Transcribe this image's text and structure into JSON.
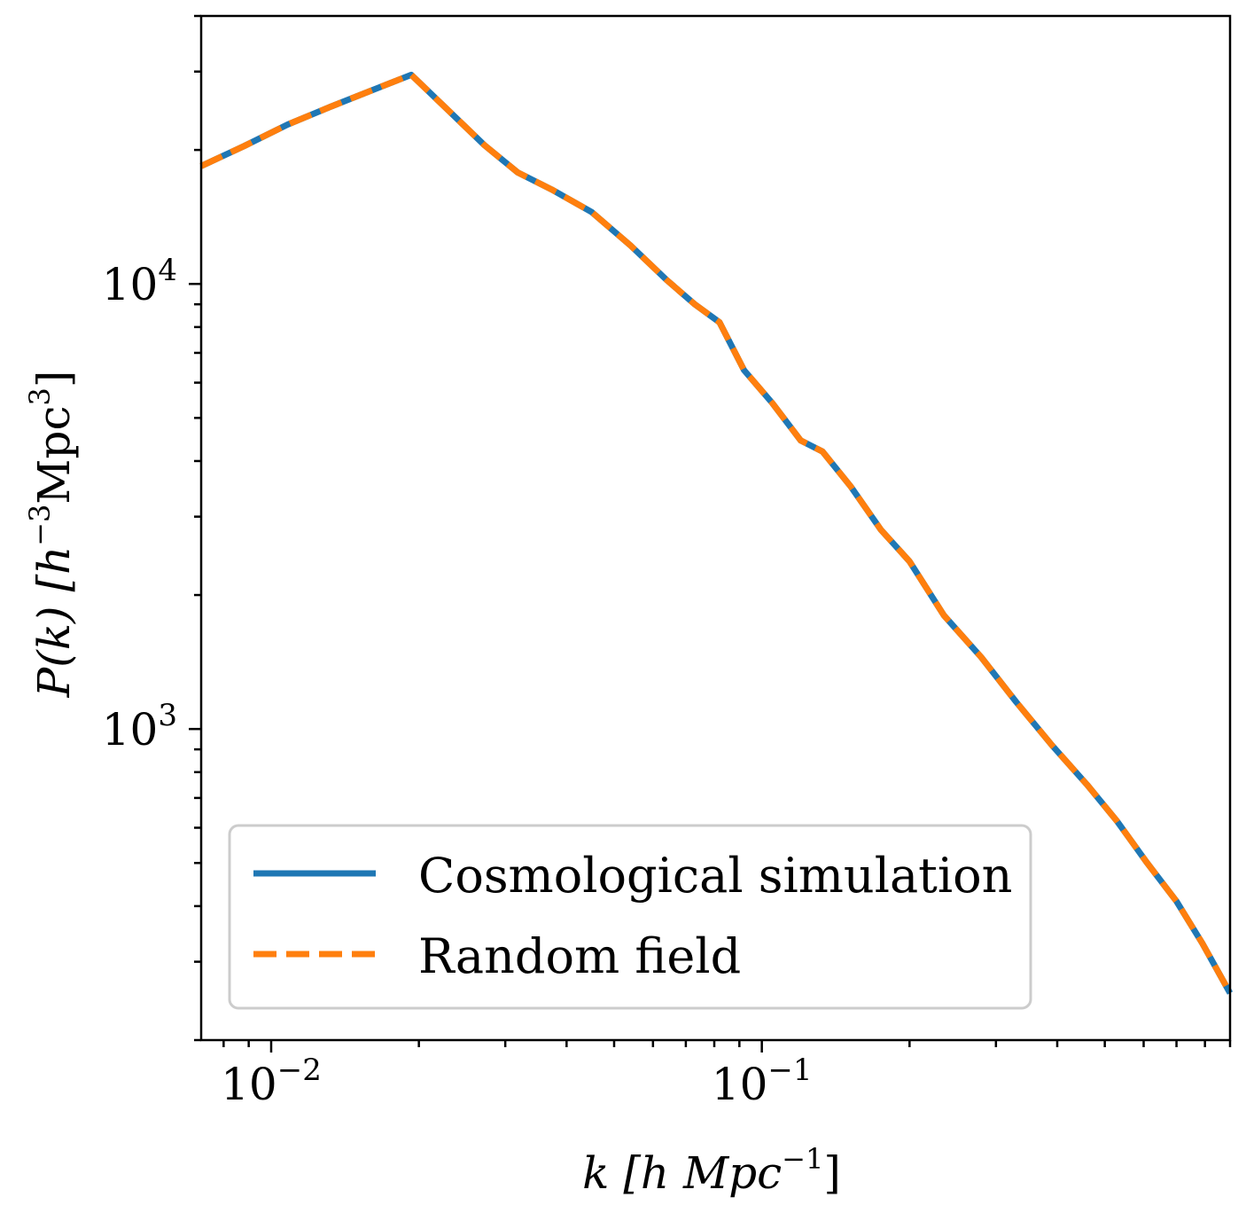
{
  "chart_data": {
    "type": "line",
    "xscale": "log",
    "yscale": "log",
    "xlim": [
      0.0072,
      0.9
    ],
    "ylim": [
      200,
      40000
    ],
    "grid": false,
    "legend_position": "lower-left",
    "xlabel": {
      "main": "k [h Mpc",
      "sup": "−1",
      "close": "]"
    },
    "ylabel": {
      "main": "P(k) [h",
      "sup": "−3",
      "mid": "Mpc",
      "sup2": "3",
      "close": "]"
    },
    "x_major_ticks": [
      {
        "value": 0.01,
        "base": "10",
        "exp": "−2"
      },
      {
        "value": 0.1,
        "base": "10",
        "exp": "−1"
      }
    ],
    "y_major_ticks": [
      {
        "value": 1000,
        "base": "10",
        "exp": "3"
      },
      {
        "value": 10000,
        "base": "10",
        "exp": "4"
      }
    ],
    "series": [
      {
        "name": "Cosmological simulation",
        "color": "#1f77b4",
        "style": "solid",
        "x": [
          0.0072,
          0.0088,
          0.0108,
          0.0132,
          0.016,
          0.0193,
          0.023,
          0.0272,
          0.0318,
          0.0373,
          0.045,
          0.054,
          0.064,
          0.073,
          0.082,
          0.092,
          0.105,
          0.12,
          0.133,
          0.152,
          0.175,
          0.2,
          0.235,
          0.28,
          0.33,
          0.39,
          0.46,
          0.53,
          0.61,
          0.7,
          0.79,
          0.9
        ],
        "y": [
          18400,
          20400,
          22800,
          25000,
          27200,
          29500,
          24500,
          20500,
          17800,
          16300,
          14500,
          12200,
          10200,
          9000,
          8200,
          6400,
          5400,
          4450,
          4200,
          3500,
          2800,
          2380,
          1800,
          1450,
          1150,
          920,
          750,
          620,
          500,
          410,
          330,
          255
        ]
      },
      {
        "name": "Random field",
        "color": "#ff7f0e",
        "style": "dashed",
        "x": [
          0.0072,
          0.0088,
          0.0108,
          0.0132,
          0.016,
          0.0193,
          0.023,
          0.0272,
          0.0318,
          0.0373,
          0.045,
          0.054,
          0.064,
          0.073,
          0.082,
          0.092,
          0.105,
          0.12,
          0.133,
          0.152,
          0.175,
          0.2,
          0.235,
          0.28,
          0.33,
          0.39,
          0.46,
          0.53,
          0.61,
          0.7,
          0.79,
          0.9
        ],
        "y": [
          18400,
          20400,
          22800,
          25000,
          27200,
          29500,
          24500,
          20500,
          17800,
          16300,
          14500,
          12200,
          10200,
          9000,
          8200,
          6400,
          5400,
          4450,
          4200,
          3500,
          2800,
          2380,
          1800,
          1450,
          1150,
          920,
          750,
          620,
          500,
          410,
          330,
          255
        ]
      }
    ]
  }
}
